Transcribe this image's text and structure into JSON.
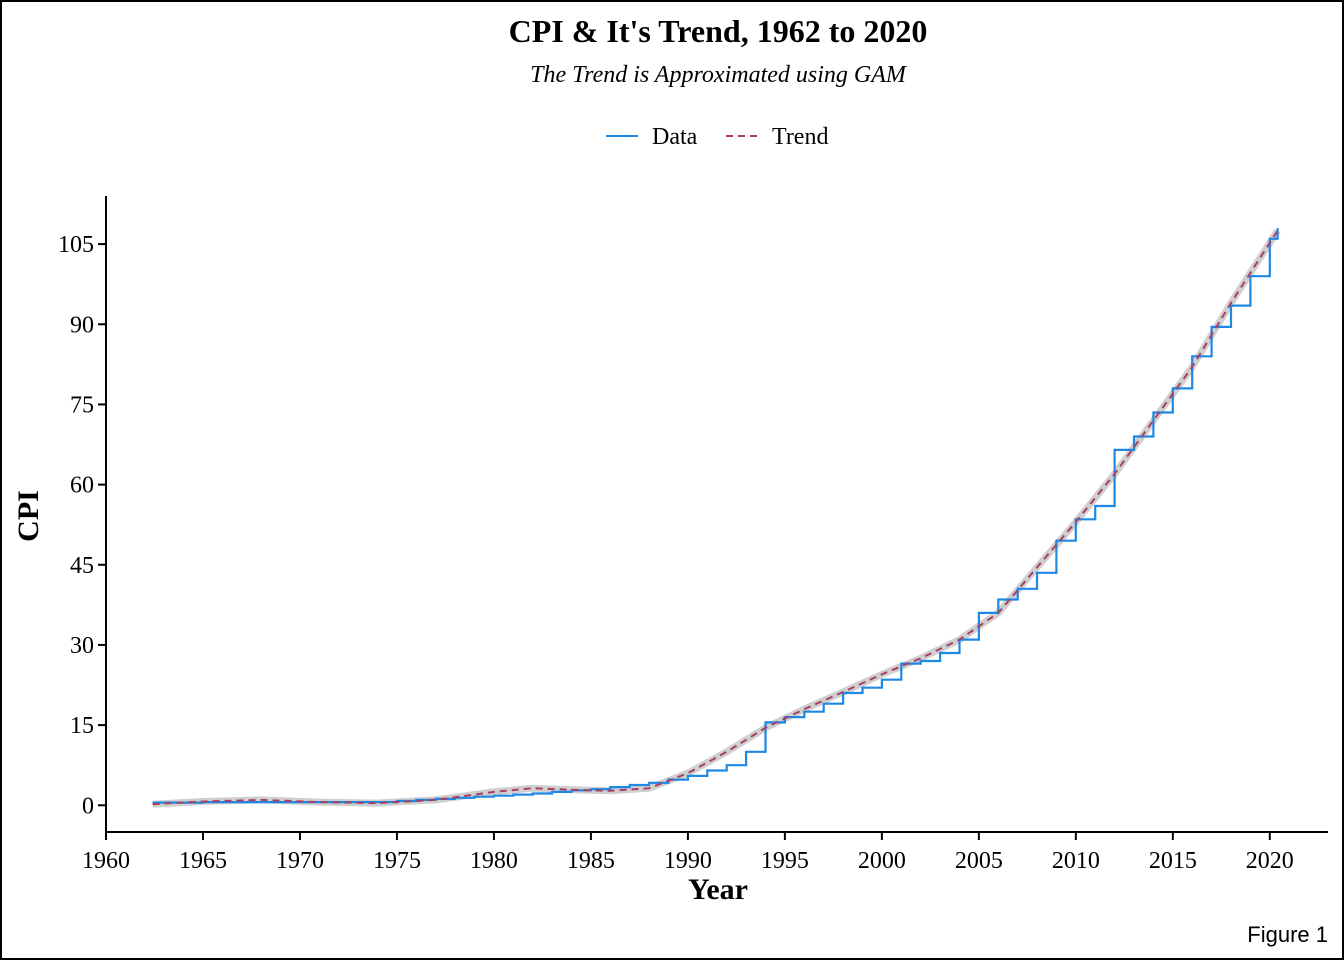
{
  "chart_data": {
    "type": "line",
    "title": "CPI & It's Trend, 1962 to 2020",
    "subtitle": "The Trend is Approximated using GAM",
    "xlabel": "Year",
    "ylabel": "CPI",
    "caption": "Figure 1",
    "xlim": [
      1960,
      2023
    ],
    "ylim": [
      -5,
      114
    ],
    "x_ticks": [
      1960,
      1965,
      1970,
      1975,
      1980,
      1985,
      1990,
      1995,
      2000,
      2005,
      2010,
      2015,
      2020
    ],
    "y_ticks": [
      0,
      15,
      30,
      45,
      60,
      75,
      90,
      105
    ],
    "legend_position": "top",
    "grid": false,
    "series": [
      {
        "name": "Data",
        "color": "#1E88E5",
        "style": "step",
        "x": [
          1962.4,
          1963.0,
          1964.0,
          1965.0,
          1966.0,
          1967.0,
          1968.0,
          1969.0,
          1970.0,
          1971.0,
          1972.0,
          1973.0,
          1974.0,
          1975.0,
          1976.0,
          1977.0,
          1978.0,
          1979.0,
          1980.0,
          1981.0,
          1982.0,
          1983.0,
          1984.0,
          1985.0,
          1986.0,
          1987.0,
          1988.0,
          1989.0,
          1990.0,
          1991.0,
          1992.0,
          1993.0,
          1994.0,
          1995.0,
          1996.0,
          1997.0,
          1998.0,
          1999.0,
          2000.0,
          2001.0,
          2002.0,
          2003.0,
          2004.0,
          2005.0,
          2006.0,
          2007.0,
          2008.0,
          2009.0,
          2010.0,
          2011.0,
          2012.0,
          2013.0,
          2014.0,
          2015.0,
          2016.0,
          2017.0,
          2018.0,
          2019.0,
          2020.0,
          2020.4
        ],
        "y": [
          0.5,
          0.5,
          0.5,
          0.6,
          0.6,
          0.6,
          0.6,
          0.6,
          0.6,
          0.6,
          0.6,
          0.6,
          0.6,
          0.8,
          1.0,
          1.2,
          1.4,
          1.6,
          1.8,
          2.0,
          2.2,
          2.5,
          2.8,
          3.0,
          3.4,
          3.8,
          4.2,
          4.8,
          5.5,
          6.5,
          7.5,
          10.0,
          15.5,
          16.5,
          17.5,
          19.0,
          21.0,
          22.0,
          23.5,
          26.5,
          27.0,
          28.5,
          31.0,
          36.0,
          38.5,
          40.5,
          43.5,
          49.5,
          53.5,
          56.0,
          66.5,
          69.0,
          73.5,
          78.0,
          84.0,
          89.5,
          93.5,
          99.0,
          106.0,
          108.0
        ]
      },
      {
        "name": "Trend",
        "color": "#A94064",
        "style": "dashed",
        "x": [
          1962.4,
          1965,
          1968,
          1971,
          1974,
          1977,
          1980,
          1982,
          1984,
          1986,
          1988,
          1990,
          1992,
          1994,
          1996,
          1998,
          2000,
          2002,
          2004,
          2006,
          2008,
          2010,
          2012,
          2014,
          2016,
          2018,
          2020.4
        ],
        "y": [
          0.2,
          0.7,
          1.0,
          0.6,
          0.4,
          1.0,
          2.5,
          3.2,
          2.9,
          2.7,
          3.2,
          6.0,
          10.0,
          14.5,
          18.0,
          21.2,
          24.5,
          27.5,
          31.0,
          36.0,
          44.5,
          53.0,
          62.0,
          72.0,
          82.0,
          94.0,
          107.5
        ]
      }
    ]
  }
}
